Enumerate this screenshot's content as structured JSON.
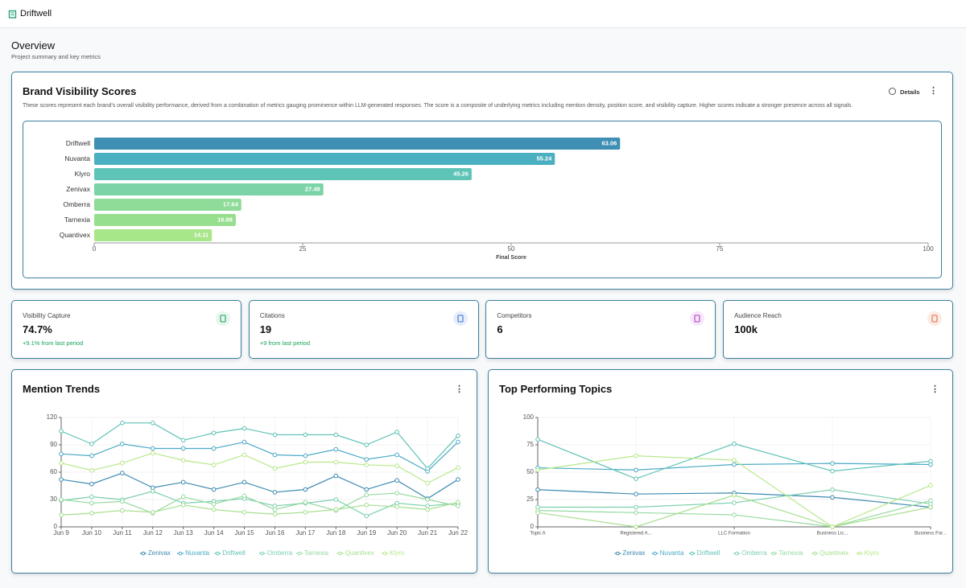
{
  "header": {
    "app_name": "Driftwell"
  },
  "overview": {
    "title": "Overview",
    "subtitle": "Project summary and key metrics"
  },
  "visibility_card": {
    "details_button": "Details"
  },
  "metrics": [
    {
      "label": "Visibility Capture",
      "value": "74.7%",
      "change": "+9.1% from last period"
    },
    {
      "label": "Citations",
      "value": "19",
      "change": "+9 from last period"
    },
    {
      "label": "Competitors",
      "value": "6"
    },
    {
      "label": "Audience Reach",
      "value": "100k"
    }
  ],
  "chart_data": [
    {
      "type": "hbar",
      "title": "Brand Visibility Scores",
      "subtitle": "These scores represent each brand's overall visibility performance, derived from a combination of metrics gauging prominence within LLM-generated responses. The score is a composite of underlying metrics including mention density, position score, and visibility capture. Higher scores indicate a stronger presence across all signals.",
      "categories": [
        "Driftwell",
        "Nuvanta",
        "Klyro",
        "Zenivax",
        "Omberra",
        "Tarnexia",
        "Quantivex"
      ],
      "values": [
        63.06,
        55.24,
        45.26,
        27.48,
        17.64,
        16.98,
        14.11
      ],
      "colors": [
        "#3f8fb5",
        "#4aafc0",
        "#5fc4b8",
        "#7bd3a8",
        "#8fdb98",
        "#96df8e",
        "#a8e68a"
      ],
      "xlim": [
        0,
        100
      ],
      "xticks": [
        0,
        25,
        50,
        75,
        100
      ],
      "xlabel": "Final Score"
    },
    {
      "type": "line",
      "title": "Mention Trends",
      "categories": [
        "Jun 9",
        "Jun 10",
        "Jun 11",
        "Jun 12",
        "Jun 13",
        "Jun 14",
        "Jun 15",
        "Jun 16",
        "Jun 17",
        "Jun 18",
        "Jun 19",
        "Jun 20",
        "Jun 21",
        "Jun 22"
      ],
      "ylim": [
        0,
        120
      ],
      "yticks": [
        0,
        30,
        60,
        90,
        120
      ],
      "grid": true,
      "series": [
        {
          "name": "Zenivax",
          "color": "#3d8ab0",
          "values": [
            52,
            47,
            59,
            43,
            49,
            41,
            49,
            38,
            41,
            56,
            41,
            51,
            31,
            52
          ]
        },
        {
          "name": "Nuvanta",
          "color": "#4aa9c8",
          "values": [
            80,
            78,
            91,
            86,
            86,
            86,
            93,
            79,
            78,
            85,
            74,
            79,
            61,
            93
          ]
        },
        {
          "name": "Driftwell",
          "color": "#5fc2b6",
          "values": [
            105,
            91,
            114,
            114,
            95,
            103,
            108,
            101,
            101,
            101,
            90,
            104,
            64,
            100
          ]
        },
        {
          "name": "Omberra",
          "color": "#7ccfad",
          "values": [
            29,
            33,
            30,
            39,
            26,
            28,
            31,
            23,
            26,
            30,
            12,
            26,
            23,
            26
          ]
        },
        {
          "name": "Tarnexia",
          "color": "#95d9a0",
          "values": [
            30,
            26,
            28,
            15,
            33,
            25,
            34,
            19,
            27,
            18,
            35,
            37,
            30,
            23
          ]
        },
        {
          "name": "Quantivex",
          "color": "#a6df8f",
          "values": [
            13,
            15,
            18,
            16,
            24,
            19,
            16,
            14,
            16,
            19,
            24,
            22,
            19,
            27
          ]
        },
        {
          "name": "Klyro",
          "color": "#b7e889",
          "values": [
            70,
            62,
            70,
            81,
            73,
            68,
            79,
            64,
            71,
            71,
            68,
            67,
            48,
            65
          ]
        }
      ]
    },
    {
      "type": "line",
      "title": "Top Performing Topics",
      "categories": [
        "Topic A",
        "Registered A...",
        "LLC Formation",
        "Business Lic...",
        "Business For..."
      ],
      "ylim": [
        0,
        100
      ],
      "yticks": [
        0,
        25,
        50,
        75,
        100
      ],
      "grid": true,
      "series": [
        {
          "name": "Zenivax",
          "color": "#3d8ab0",
          "values": [
            34,
            30,
            31,
            27,
            18
          ]
        },
        {
          "name": "Nuvanta",
          "color": "#4aa9c8",
          "values": [
            54,
            52,
            57,
            58,
            57
          ]
        },
        {
          "name": "Driftwell",
          "color": "#5fc2b6",
          "values": [
            80,
            44,
            76,
            51,
            60
          ]
        },
        {
          "name": "Omberra",
          "color": "#7ccfad",
          "values": [
            18,
            18,
            22,
            34,
            21
          ]
        },
        {
          "name": "Tarnexia",
          "color": "#95d9a0",
          "values": [
            15,
            13,
            11,
            0,
            24
          ]
        },
        {
          "name": "Quantivex",
          "color": "#a6df8f",
          "values": [
            13,
            0,
            29,
            0,
            18
          ]
        },
        {
          "name": "Klyro",
          "color": "#b7e889",
          "values": [
            52,
            65,
            61,
            0,
            38
          ]
        }
      ]
    }
  ]
}
